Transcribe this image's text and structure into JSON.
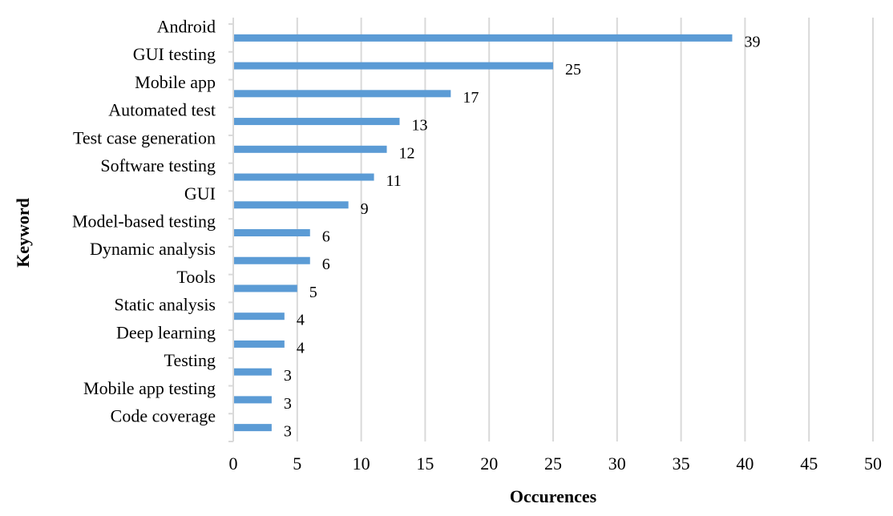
{
  "chart_data": {
    "type": "bar",
    "orientation": "horizontal",
    "categories": [
      "Android",
      "GUI testing",
      "Mobile app",
      "Automated test",
      "Test case generation",
      "Software testing",
      "GUI",
      "Model-based testing",
      "Dynamic analysis",
      "Tools",
      "Static analysis",
      "Deep learning",
      "Testing",
      "Mobile app testing",
      "Code coverage"
    ],
    "values": [
      39,
      25,
      17,
      13,
      12,
      11,
      9,
      6,
      6,
      5,
      4,
      4,
      3,
      3,
      3
    ],
    "data_labels": [
      "39",
      "25",
      "17",
      "13",
      "12",
      "11",
      "9",
      "6",
      "6",
      "5",
      "4",
      "4",
      "3",
      "3",
      "3"
    ],
    "xlabel": "Occurences",
    "ylabel": "Keyword",
    "xlim": [
      0,
      50
    ],
    "xticks": [
      "0",
      "5",
      "10",
      "15",
      "20",
      "25",
      "30",
      "35",
      "40",
      "45",
      "50"
    ],
    "grid": "vertical",
    "legend": "none",
    "bar_color": "#5B9BD5",
    "grid_color": "#D9D9D9"
  }
}
